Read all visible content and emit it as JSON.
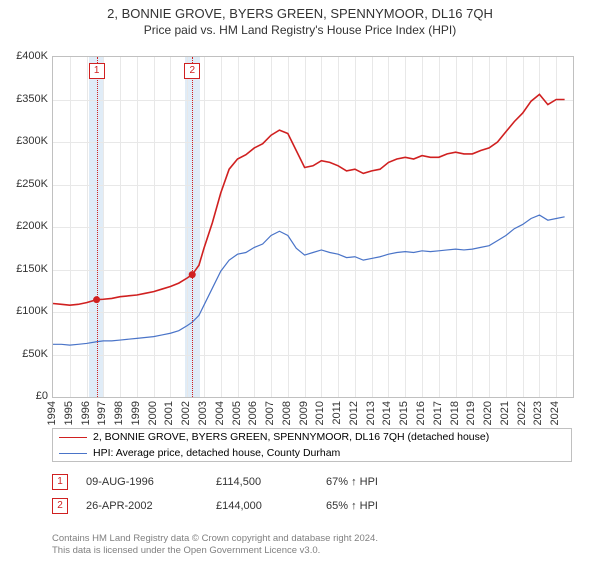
{
  "title": "2, BONNIE GROVE, BYERS GREEN, SPENNYMOOR, DL16 7QH",
  "subtitle": "Price paid vs. HM Land Registry's House Price Index (HPI)",
  "chart": {
    "type": "line",
    "background_color": "#ffffff",
    "grid_color": "#e8e8e8",
    "border_color": "#c0c0c0",
    "x": {
      "min": 1994,
      "max": 2025,
      "ticks": [
        1994,
        1995,
        1996,
        1997,
        1998,
        1999,
        2000,
        2001,
        2002,
        2003,
        2004,
        2005,
        2006,
        2007,
        2008,
        2009,
        2010,
        2011,
        2012,
        2013,
        2014,
        2015,
        2016,
        2017,
        2018,
        2019,
        2020,
        2021,
        2022,
        2023,
        2024
      ],
      "label_fontsize": 11
    },
    "y": {
      "min": 0,
      "max": 400000,
      "ticks": [
        0,
        50000,
        100000,
        150000,
        200000,
        250000,
        300000,
        350000,
        400000
      ],
      "tick_labels": [
        "£0",
        "£50K",
        "£100K",
        "£150K",
        "£200K",
        "£250K",
        "£300K",
        "£350K",
        "£400K"
      ],
      "label_fontsize": 11
    },
    "event_band": {
      "color": "#e0ecf7",
      "dash_color": "#d02020"
    },
    "events": [
      {
        "idx": "1",
        "year": 1996.6,
        "band_half": 0.45
      },
      {
        "idx": "2",
        "year": 2002.3,
        "band_half": 0.45
      }
    ],
    "series": [
      {
        "name": "price_paid",
        "color": "#d02020",
        "width": 1.6,
        "legend": "2, BONNIE GROVE, BYERS GREEN, SPENNYMOOR, DL16 7QH (detached house)",
        "points": [
          [
            1994.0,
            110000
          ],
          [
            1994.5,
            109000
          ],
          [
            1995.0,
            108000
          ],
          [
            1995.5,
            109000
          ],
          [
            1996.0,
            111000
          ],
          [
            1996.6,
            114500
          ],
          [
            1997.0,
            115000
          ],
          [
            1997.5,
            116000
          ],
          [
            1998.0,
            118000
          ],
          [
            1998.5,
            119000
          ],
          [
            1999.0,
            120000
          ],
          [
            1999.5,
            122000
          ],
          [
            2000.0,
            124000
          ],
          [
            2000.5,
            127000
          ],
          [
            2001.0,
            130000
          ],
          [
            2001.5,
            134000
          ],
          [
            2002.0,
            140000
          ],
          [
            2002.3,
            144000
          ],
          [
            2002.7,
            155000
          ],
          [
            2003.0,
            175000
          ],
          [
            2003.5,
            205000
          ],
          [
            2004.0,
            240000
          ],
          [
            2004.5,
            268000
          ],
          [
            2005.0,
            280000
          ],
          [
            2005.5,
            285000
          ],
          [
            2006.0,
            293000
          ],
          [
            2006.5,
            298000
          ],
          [
            2007.0,
            308000
          ],
          [
            2007.5,
            314000
          ],
          [
            2008.0,
            310000
          ],
          [
            2008.5,
            290000
          ],
          [
            2009.0,
            270000
          ],
          [
            2009.5,
            272000
          ],
          [
            2010.0,
            278000
          ],
          [
            2010.5,
            276000
          ],
          [
            2011.0,
            272000
          ],
          [
            2011.5,
            266000
          ],
          [
            2012.0,
            268000
          ],
          [
            2012.5,
            263000
          ],
          [
            2013.0,
            266000
          ],
          [
            2013.5,
            268000
          ],
          [
            2014.0,
            276000
          ],
          [
            2014.5,
            280000
          ],
          [
            2015.0,
            282000
          ],
          [
            2015.5,
            280000
          ],
          [
            2016.0,
            284000
          ],
          [
            2016.5,
            282000
          ],
          [
            2017.0,
            282000
          ],
          [
            2017.5,
            286000
          ],
          [
            2018.0,
            288000
          ],
          [
            2018.5,
            286000
          ],
          [
            2019.0,
            286000
          ],
          [
            2019.5,
            290000
          ],
          [
            2020.0,
            293000
          ],
          [
            2020.5,
            300000
          ],
          [
            2021.0,
            312000
          ],
          [
            2021.5,
            324000
          ],
          [
            2022.0,
            334000
          ],
          [
            2022.5,
            348000
          ],
          [
            2023.0,
            356000
          ],
          [
            2023.5,
            344000
          ],
          [
            2024.0,
            350000
          ],
          [
            2024.5,
            350000
          ]
        ]
      },
      {
        "name": "hpi",
        "color": "#4a74c8",
        "width": 1.2,
        "legend": "HPI: Average price, detached house, County Durham",
        "points": [
          [
            1994.0,
            62000
          ],
          [
            1994.5,
            62000
          ],
          [
            1995.0,
            61000
          ],
          [
            1995.5,
            62000
          ],
          [
            1996.0,
            63000
          ],
          [
            1996.6,
            65000
          ],
          [
            1997.0,
            66000
          ],
          [
            1997.5,
            66000
          ],
          [
            1998.0,
            67000
          ],
          [
            1998.5,
            68000
          ],
          [
            1999.0,
            69000
          ],
          [
            1999.5,
            70000
          ],
          [
            2000.0,
            71000
          ],
          [
            2000.5,
            73000
          ],
          [
            2001.0,
            75000
          ],
          [
            2001.5,
            78000
          ],
          [
            2002.0,
            84000
          ],
          [
            2002.3,
            88000
          ],
          [
            2002.7,
            96000
          ],
          [
            2003.0,
            108000
          ],
          [
            2003.5,
            128000
          ],
          [
            2004.0,
            148000
          ],
          [
            2004.5,
            161000
          ],
          [
            2005.0,
            168000
          ],
          [
            2005.5,
            170000
          ],
          [
            2006.0,
            176000
          ],
          [
            2006.5,
            180000
          ],
          [
            2007.0,
            190000
          ],
          [
            2007.5,
            195000
          ],
          [
            2008.0,
            190000
          ],
          [
            2008.5,
            175000
          ],
          [
            2009.0,
            167000
          ],
          [
            2009.5,
            170000
          ],
          [
            2010.0,
            173000
          ],
          [
            2010.5,
            170000
          ],
          [
            2011.0,
            168000
          ],
          [
            2011.5,
            164000
          ],
          [
            2012.0,
            165000
          ],
          [
            2012.5,
            161000
          ],
          [
            2013.0,
            163000
          ],
          [
            2013.5,
            165000
          ],
          [
            2014.0,
            168000
          ],
          [
            2014.5,
            170000
          ],
          [
            2015.0,
            171000
          ],
          [
            2015.5,
            170000
          ],
          [
            2016.0,
            172000
          ],
          [
            2016.5,
            171000
          ],
          [
            2017.0,
            172000
          ],
          [
            2017.5,
            173000
          ],
          [
            2018.0,
            174000
          ],
          [
            2018.5,
            173000
          ],
          [
            2019.0,
            174000
          ],
          [
            2019.5,
            176000
          ],
          [
            2020.0,
            178000
          ],
          [
            2020.5,
            184000
          ],
          [
            2021.0,
            190000
          ],
          [
            2021.5,
            198000
          ],
          [
            2022.0,
            203000
          ],
          [
            2022.5,
            210000
          ],
          [
            2023.0,
            214000
          ],
          [
            2023.5,
            208000
          ],
          [
            2024.0,
            210000
          ],
          [
            2024.5,
            212000
          ]
        ]
      }
    ],
    "sale_markers": [
      {
        "year": 1996.6,
        "value": 114500,
        "color": "#d02020"
      },
      {
        "year": 2002.3,
        "value": 144000,
        "color": "#d02020"
      }
    ]
  },
  "sales": [
    {
      "idx": "1",
      "date": "09-AUG-1996",
      "price": "£114,500",
      "pct": "67% ↑ HPI",
      "marker_color": "#d02020"
    },
    {
      "idx": "2",
      "date": "26-APR-2002",
      "price": "£144,000",
      "pct": "65% ↑ HPI",
      "marker_color": "#d02020"
    }
  ],
  "footer": {
    "line1": "Contains HM Land Registry data © Crown copyright and database right 2024.",
    "line2": "This data is licensed under the Open Government Licence v3.0."
  }
}
